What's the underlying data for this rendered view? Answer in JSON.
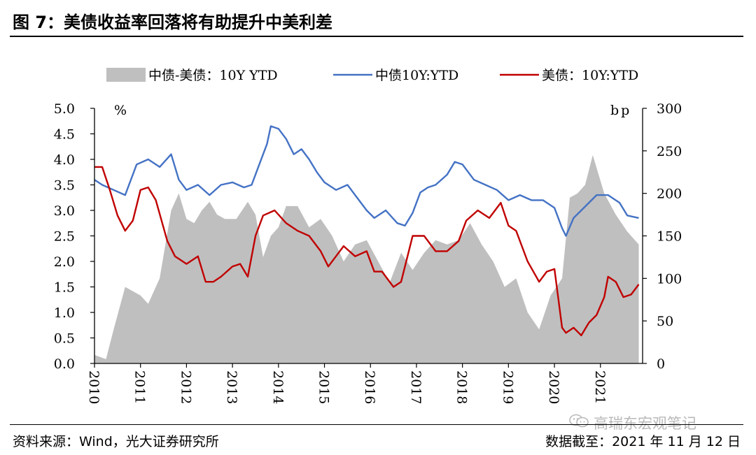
{
  "header": {
    "title": "图 7：美债收益率回落将有助提升中美利差"
  },
  "footer": {
    "source": "资料来源：Wind，光大证券研究所",
    "cutoff": "数据截至：2021 年 11 月 12 日",
    "watermark": "高瑞东宏观笔记"
  },
  "colors": {
    "spread": "#bfbfbf",
    "china": "#4472c4",
    "us": "#c00000"
  },
  "chart_data": {
    "type": "line",
    "legend_position": "top",
    "grid": false,
    "left_axis": {
      "unit": "%",
      "ylim": [
        0,
        5
      ],
      "ticks": [
        "5.0",
        "4.5",
        "4.0",
        "3.5",
        "3.0",
        "2.5",
        "2.0",
        "1.5",
        "1.0",
        "0.5",
        "0.0"
      ]
    },
    "right_axis": {
      "unit": "bp",
      "ylim": [
        0,
        300
      ],
      "ticks": [
        "300",
        "250",
        "200",
        "150",
        "100",
        "50",
        "0"
      ]
    },
    "x_axis": {
      "ticks": [
        "2010",
        "2011",
        "2012",
        "2013",
        "2014",
        "2015",
        "2016",
        "2017",
        "2018",
        "2019",
        "2020",
        "2021"
      ],
      "range": [
        "2010-01",
        "2021-11"
      ]
    },
    "series": [
      {
        "name": "中债-美债：10Y YTD",
        "kind": "area",
        "axis": "right",
        "color": "#bfbfbf",
        "x": [
          "2010-01",
          "2010-04",
          "2010-06",
          "2010-09",
          "2011-01",
          "2011-03",
          "2011-06",
          "2011-09",
          "2011-11",
          "2012-01",
          "2012-03",
          "2012-05",
          "2012-07",
          "2012-09",
          "2012-11",
          "2013-02",
          "2013-05",
          "2013-07",
          "2013-09",
          "2013-11",
          "2014-01",
          "2014-03",
          "2014-06",
          "2014-09",
          "2014-12",
          "2015-03",
          "2015-06",
          "2015-09",
          "2015-12",
          "2016-03",
          "2016-06",
          "2016-09",
          "2016-12",
          "2017-03",
          "2017-06",
          "2017-09",
          "2017-12",
          "2018-03",
          "2018-06",
          "2018-09",
          "2018-12",
          "2019-03",
          "2019-06",
          "2019-09",
          "2019-12",
          "2020-03",
          "2020-05",
          "2020-07",
          "2020-09",
          "2020-11",
          "2021-02",
          "2021-05",
          "2021-08",
          "2021-11"
        ],
        "values": [
          10,
          5,
          40,
          90,
          80,
          70,
          100,
          180,
          200,
          170,
          165,
          180,
          190,
          175,
          170,
          170,
          190,
          175,
          125,
          150,
          160,
          185,
          185,
          160,
          170,
          150,
          120,
          140,
          145,
          120,
          95,
          130,
          110,
          130,
          145,
          140,
          145,
          165,
          140,
          120,
          90,
          100,
          60,
          40,
          80,
          100,
          195,
          200,
          210,
          245,
          200,
          175,
          155,
          140
        ]
      },
      {
        "name": "中债10Y:YTD",
        "kind": "line",
        "axis": "left",
        "color": "#4472c4",
        "x": [
          "2010-01",
          "2010-03",
          "2010-06",
          "2010-09",
          "2010-12",
          "2011-03",
          "2011-06",
          "2011-09",
          "2011-11",
          "2012-01",
          "2012-04",
          "2012-07",
          "2012-10",
          "2013-01",
          "2013-04",
          "2013-06",
          "2013-08",
          "2013-10",
          "2013-11",
          "2014-01",
          "2014-03",
          "2014-05",
          "2014-07",
          "2014-09",
          "2014-11",
          "2015-01",
          "2015-04",
          "2015-07",
          "2015-10",
          "2015-12",
          "2016-02",
          "2016-05",
          "2016-08",
          "2016-10",
          "2016-12",
          "2017-02",
          "2017-04",
          "2017-06",
          "2017-09",
          "2017-11",
          "2018-01",
          "2018-04",
          "2018-07",
          "2018-10",
          "2019-01",
          "2019-04",
          "2019-07",
          "2019-10",
          "2020-01",
          "2020-03",
          "2020-04",
          "2020-06",
          "2020-08",
          "2020-10",
          "2020-12",
          "2021-03",
          "2021-06",
          "2021-08",
          "2021-11"
        ],
        "values": [
          3.6,
          3.5,
          3.4,
          3.3,
          3.9,
          4.0,
          3.85,
          4.1,
          3.6,
          3.4,
          3.5,
          3.3,
          3.5,
          3.55,
          3.45,
          3.5,
          3.9,
          4.3,
          4.65,
          4.6,
          4.4,
          4.1,
          4.2,
          4.0,
          3.75,
          3.55,
          3.4,
          3.5,
          3.2,
          3.0,
          2.85,
          3.0,
          2.75,
          2.7,
          2.95,
          3.35,
          3.45,
          3.5,
          3.7,
          3.95,
          3.9,
          3.6,
          3.5,
          3.4,
          3.2,
          3.3,
          3.2,
          3.2,
          3.05,
          2.65,
          2.5,
          2.85,
          3.0,
          3.15,
          3.3,
          3.3,
          3.15,
          2.9,
          2.85
        ]
      },
      {
        "name": "美债：10Y:YTD",
        "kind": "line",
        "axis": "left",
        "color": "#c00000",
        "x": [
          "2010-01",
          "2010-03",
          "2010-05",
          "2010-07",
          "2010-09",
          "2010-11",
          "2011-01",
          "2011-03",
          "2011-05",
          "2011-08",
          "2011-10",
          "2012-01",
          "2012-04",
          "2012-06",
          "2012-08",
          "2012-10",
          "2013-01",
          "2013-03",
          "2013-05",
          "2013-07",
          "2013-09",
          "2013-12",
          "2014-03",
          "2014-06",
          "2014-09",
          "2014-12",
          "2015-02",
          "2015-06",
          "2015-09",
          "2015-12",
          "2016-02",
          "2016-04",
          "2016-07",
          "2016-09",
          "2016-11",
          "2016-12",
          "2017-03",
          "2017-06",
          "2017-09",
          "2017-12",
          "2018-02",
          "2018-05",
          "2018-08",
          "2018-11",
          "2019-01",
          "2019-03",
          "2019-06",
          "2019-09",
          "2019-11",
          "2020-01",
          "2020-03",
          "2020-04",
          "2020-06",
          "2020-08",
          "2020-10",
          "2020-12",
          "2021-02",
          "2021-03",
          "2021-05",
          "2021-07",
          "2021-09",
          "2021-11"
        ],
        "values": [
          3.85,
          3.85,
          3.4,
          2.9,
          2.6,
          2.8,
          3.4,
          3.45,
          3.2,
          2.4,
          2.1,
          1.95,
          2.1,
          1.6,
          1.6,
          1.7,
          1.9,
          1.95,
          1.7,
          2.5,
          2.9,
          3.0,
          2.75,
          2.6,
          2.5,
          2.2,
          1.9,
          2.3,
          2.1,
          2.2,
          1.8,
          1.8,
          1.5,
          1.6,
          2.2,
          2.5,
          2.5,
          2.2,
          2.2,
          2.4,
          2.8,
          3.0,
          2.85,
          3.15,
          2.7,
          2.6,
          2.0,
          1.6,
          1.8,
          1.85,
          0.7,
          0.6,
          0.7,
          0.55,
          0.8,
          0.95,
          1.3,
          1.7,
          1.6,
          1.3,
          1.35,
          1.55
        ]
      }
    ]
  }
}
